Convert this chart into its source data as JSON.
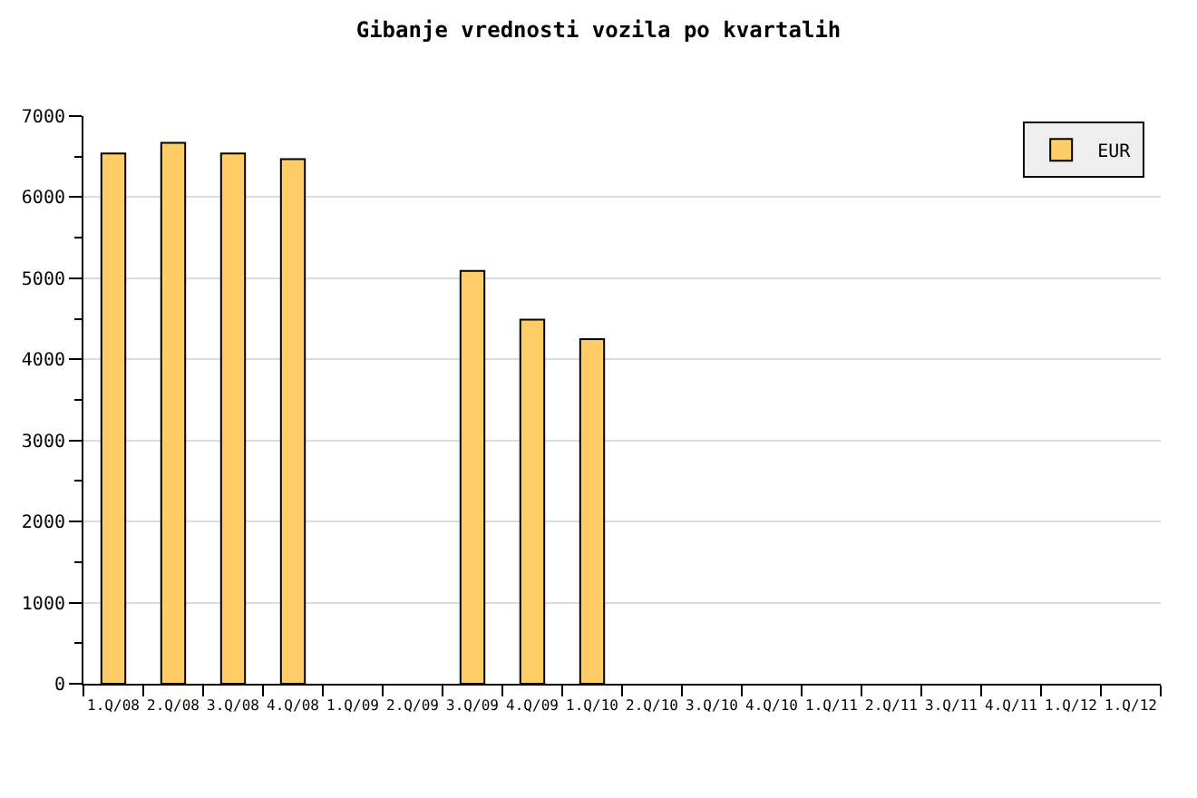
{
  "chart_data": {
    "type": "bar",
    "title": "Gibanje vrednosti vozila po kvartalih",
    "categories": [
      "1.Q/08",
      "2.Q/08",
      "3.Q/08",
      "4.Q/08",
      "1.Q/09",
      "2.Q/09",
      "3.Q/09",
      "4.Q/09",
      "1.Q/10",
      "2.Q/10",
      "3.Q/10",
      "4.Q/10",
      "1.Q/11",
      "2.Q/11",
      "3.Q/11",
      "4.Q/11",
      "1.Q/12",
      "1.Q/12"
    ],
    "series": [
      {
        "name": "EUR",
        "color": "#ffcc66",
        "values": [
          6540,
          6670,
          6540,
          6470,
          null,
          null,
          5090,
          4490,
          4250,
          null,
          null,
          null,
          null,
          null,
          null,
          null,
          null,
          null
        ]
      }
    ],
    "ylim": [
      0,
      7000
    ],
    "yticks": [
      0,
      {
        "value": 500,
        "label": null
      },
      1000,
      {
        "value": 1500,
        "label": null
      },
      2000,
      {
        "value": 2500,
        "label": null
      },
      3000,
      {
        "value": 3500,
        "label": null
      },
      4000,
      {
        "value": 4500,
        "label": null
      },
      5000,
      {
        "value": 5500,
        "label": null
      },
      6000,
      {
        "value": 6500,
        "label": null
      },
      7000
    ],
    "grid": "y",
    "legend": "top right"
  }
}
